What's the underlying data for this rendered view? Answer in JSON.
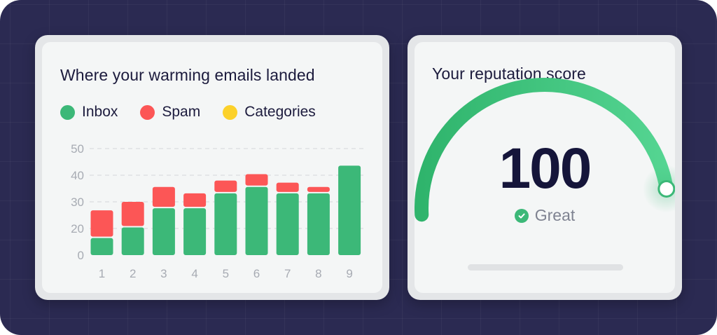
{
  "left_card": {
    "title": "Where your warming emails landed",
    "legend": [
      {
        "label": "Inbox",
        "color": "#3cb878"
      },
      {
        "label": "Spam",
        "color": "#fc5656"
      },
      {
        "label": "Categories",
        "color": "#fcd12a"
      }
    ]
  },
  "chart_data": {
    "type": "bar",
    "stacked": true,
    "categories": [
      "1",
      "2",
      "3",
      "4",
      "5",
      "6",
      "7",
      "8",
      "9"
    ],
    "series": [
      {
        "name": "Inbox",
        "color": "#3cb878",
        "values": [
          8,
          13,
          22,
          22,
          29,
          32,
          29,
          29,
          42
        ]
      },
      {
        "name": "Spam",
        "color": "#fc5656",
        "values": [
          13,
          12,
          10,
          7,
          6,
          6,
          5,
          3,
          0
        ]
      },
      {
        "name": "Categories",
        "color": "#fcd12a",
        "values": [
          0,
          0,
          0,
          0,
          0,
          0,
          0,
          0,
          0
        ]
      }
    ],
    "ylim": [
      0,
      50
    ],
    "yticks": [
      "0",
      "20",
      "30",
      "40",
      "50"
    ],
    "grid": true,
    "legend_position": "top-left"
  },
  "right_card": {
    "title": "Your reputation score",
    "score": "100",
    "status_label": "Great",
    "status_color": "#3cb878",
    "gauge_fraction": 1.0
  }
}
